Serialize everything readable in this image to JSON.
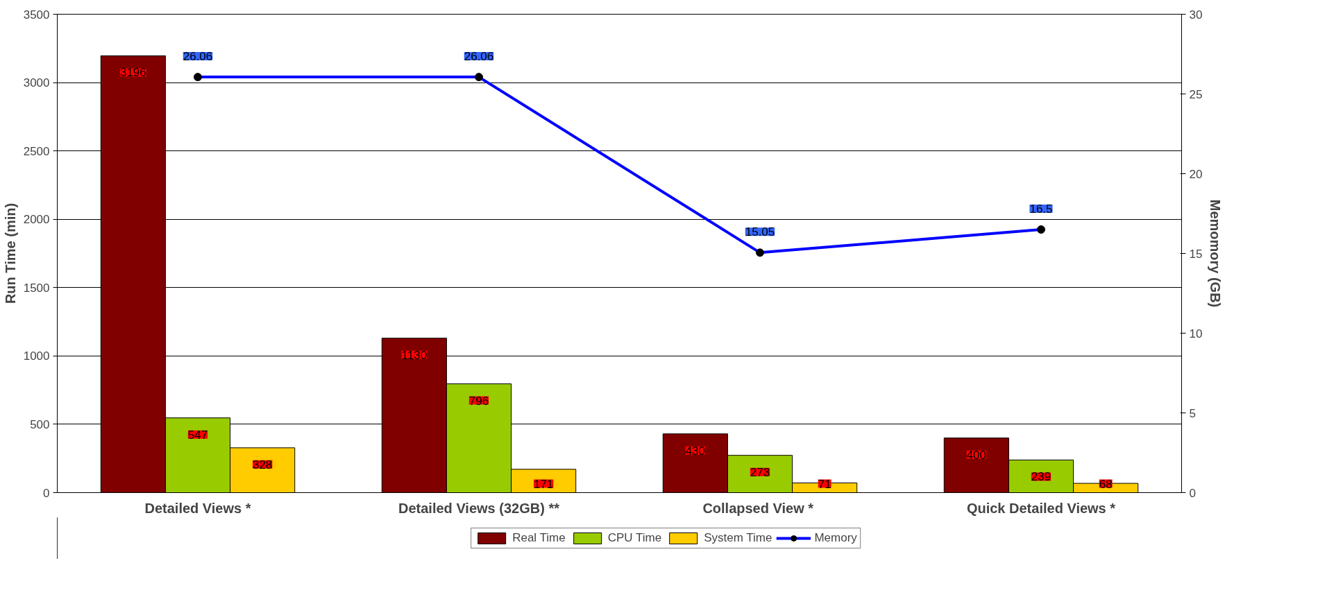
{
  "chart_data": {
    "type": "bar",
    "ylabel": "Run Time (min)",
    "y2label": "Memomory (GB)",
    "categories": [
      "Detailed Views *",
      "Detailed Views (32GB) **",
      "Collapsed View  *",
      "Quick Detailed Views *"
    ],
    "series": [
      {
        "name": "Real Time",
        "color": "#800000",
        "values": [
          3196,
          1130,
          430,
          400
        ]
      },
      {
        "name": "CPU Time",
        "color": "#99cc00",
        "values": [
          547,
          796,
          273,
          239
        ]
      },
      {
        "name": "System Time",
        "color": "#ffcc00",
        "values": [
          328,
          171,
          71,
          68
        ]
      },
      {
        "name": "Memory",
        "type": "line",
        "axis": "y2",
        "color": "#0000ff",
        "values": [
          26.06,
          26.06,
          15.05,
          16.5
        ]
      }
    ],
    "ylim": [
      0,
      3500
    ],
    "yticks": [
      0,
      500,
      1000,
      1500,
      2000,
      2500,
      3000,
      3500
    ],
    "y2lim": [
      0,
      30
    ],
    "y2ticks": [
      0,
      5,
      10,
      15,
      20,
      25,
      30
    ],
    "grid": "y",
    "legend": "bottom",
    "marker": "circle",
    "data_labels": true
  }
}
